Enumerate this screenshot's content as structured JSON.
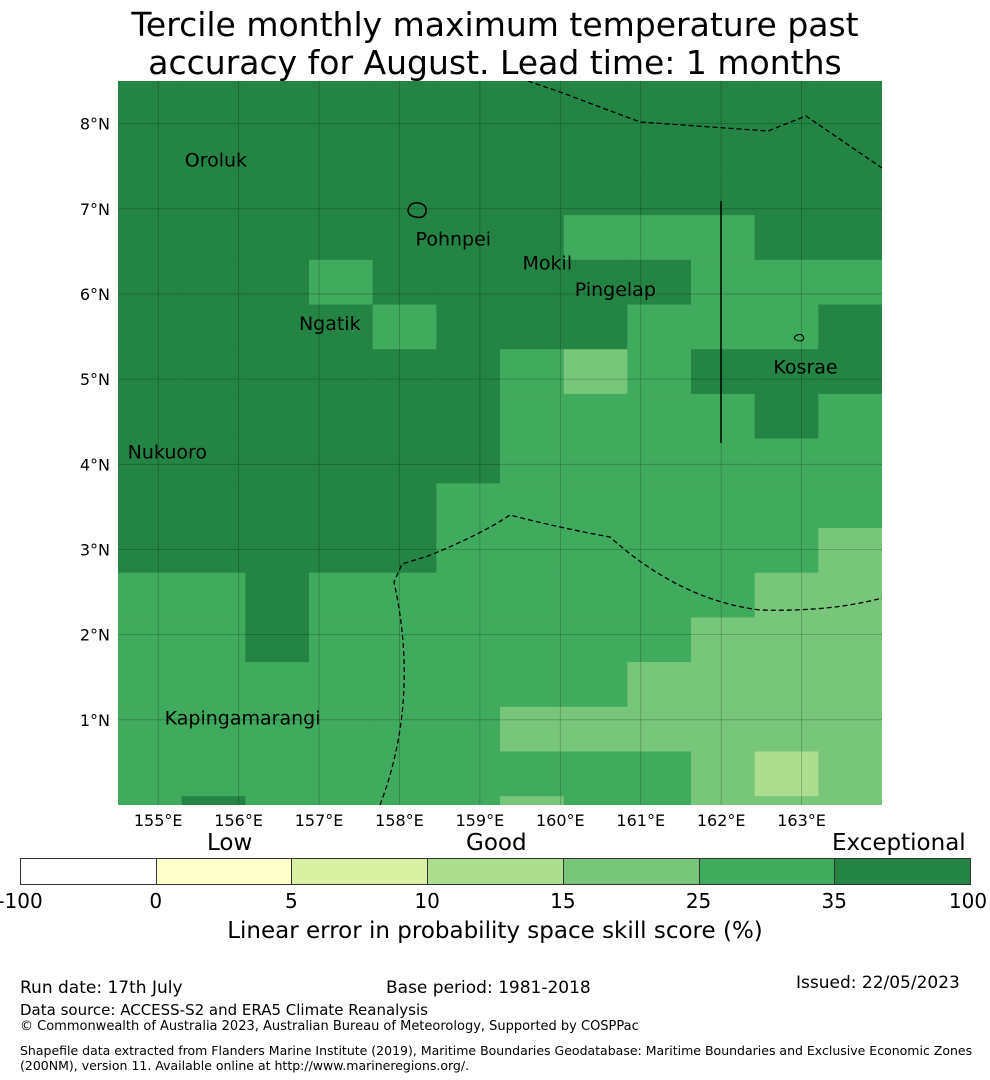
{
  "title_line1": "Tercile monthly maximum temperature past",
  "title_line2": "accuracy for August. Lead time: 1 months",
  "map": {
    "lon_range": [
      154.5,
      164.0
    ],
    "lat_range": [
      -0.0,
      8.5
    ],
    "x_ticks": [
      {
        "lon": 155,
        "label": "155°E"
      },
      {
        "lon": 156,
        "label": "156°E"
      },
      {
        "lon": 157,
        "label": "157°E"
      },
      {
        "lon": 158,
        "label": "158°E"
      },
      {
        "lon": 159,
        "label": "159°E"
      },
      {
        "lon": 160,
        "label": "160°E"
      },
      {
        "lon": 161,
        "label": "161°E"
      },
      {
        "lon": 162,
        "label": "162°E"
      },
      {
        "lon": 163,
        "label": "163°E"
      }
    ],
    "y_ticks": [
      {
        "lat": 1,
        "label": "1°N"
      },
      {
        "lat": 2,
        "label": "2°N"
      },
      {
        "lat": 3,
        "label": "3°N"
      },
      {
        "lat": 4,
        "label": "4°N"
      },
      {
        "lat": 5,
        "label": "5°N"
      },
      {
        "lat": 6,
        "label": "6°N"
      },
      {
        "lat": 7,
        "label": "7°N"
      },
      {
        "lat": 8,
        "label": "8°N"
      }
    ],
    "grid": true,
    "places": [
      {
        "name": "Oroluk",
        "lon": 155.33,
        "lat": 7.58
      },
      {
        "name": "Pohnpei",
        "lon": 158.2,
        "lat": 6.65
      },
      {
        "name": "Mokil",
        "lon": 159.53,
        "lat": 6.37
      },
      {
        "name": "Pingelap",
        "lon": 160.18,
        "lat": 6.06
      },
      {
        "name": "Ngatik",
        "lon": 156.75,
        "lat": 5.66
      },
      {
        "name": "Kosrae",
        "lon": 162.65,
        "lat": 5.15
      },
      {
        "name": "Nukuoro",
        "lon": 154.62,
        "lat": 4.15
      },
      {
        "name": "Kapingamarangi",
        "lon": 155.08,
        "lat": 1.03
      }
    ],
    "skill_grid_cols_lon_start": 154.5,
    "skill_grid_cell_deg": 0.8333,
    "skill_grid_rows_lat_top": 8.5,
    "skill_categories": [
      "35-100",
      "25-35",
      "15-25",
      "10-15"
    ],
    "skill_grid": [
      [
        0,
        0,
        0,
        0,
        0,
        0,
        0,
        0,
        0,
        0,
        0,
        0
      ],
      [
        0,
        0,
        0,
        0,
        0,
        0,
        0,
        0,
        0,
        0,
        0,
        0
      ],
      [
        0,
        0,
        0,
        0,
        0,
        0,
        0,
        0,
        0,
        0,
        0,
        0
      ],
      [
        0,
        0,
        0,
        0,
        0,
        0,
        0,
        1,
        1,
        1,
        0,
        0
      ],
      [
        0,
        0,
        0,
        1,
        0,
        0,
        0,
        0,
        0,
        1,
        1,
        1
      ],
      [
        0,
        0,
        0,
        0,
        1,
        0,
        0,
        0,
        1,
        1,
        1,
        0
      ],
      [
        0,
        0,
        0,
        0,
        0,
        0,
        1,
        2,
        1,
        0,
        0,
        0
      ],
      [
        0,
        0,
        0,
        0,
        0,
        0,
        1,
        1,
        1,
        1,
        0,
        1
      ],
      [
        0,
        0,
        0,
        0,
        0,
        0,
        1,
        1,
        1,
        1,
        1,
        1
      ],
      [
        0,
        0,
        0,
        0,
        0,
        1,
        1,
        1,
        1,
        1,
        1,
        1
      ],
      [
        0,
        0,
        0,
        0,
        0,
        1,
        1,
        1,
        1,
        1,
        1,
        2
      ],
      [
        1,
        1,
        0,
        1,
        1,
        1,
        1,
        1,
        1,
        1,
        2,
        2
      ],
      [
        1,
        1,
        0,
        1,
        1,
        1,
        1,
        1,
        1,
        2,
        2,
        2
      ],
      [
        1,
        1,
        1,
        1,
        1,
        1,
        1,
        1,
        2,
        2,
        2,
        2
      ],
      [
        1,
        1,
        1,
        1,
        1,
        1,
        2,
        2,
        2,
        2,
        2,
        2
      ],
      [
        1,
        1,
        1,
        1,
        1,
        1,
        1,
        1,
        1,
        2,
        3,
        2
      ],
      [
        1,
        0,
        1,
        1,
        1,
        1,
        2,
        1,
        1,
        2,
        2,
        2
      ]
    ],
    "skill_grid_partial_last_row": true
  },
  "legend": {
    "band_labels": [
      "Low",
      "Good",
      "Exceptional"
    ],
    "ticks": [
      "-100",
      "0",
      "5",
      "10",
      "15",
      "25",
      "35",
      "100"
    ],
    "colors": [
      "#ffffff",
      "#ffffcc",
      "#d9f0a3",
      "#addd8e",
      "#78c679",
      "#41ab5d",
      "#238443"
    ],
    "title": "Linear error in probability space skill score (%)"
  },
  "footer": {
    "run_date": "Run date: 17th July",
    "base_period": "Base period: 1981-2018",
    "issued": "Issued: 22/05/2023",
    "data_source": "Data source: ACCESS-S2 and ERA5 Climate Reanalysis",
    "copyright": "© Commonwealth of Australia 2023, Australian Bureau of Meteorology, Supported by COSPPac",
    "shapefile": "Shapefile data extracted from Flanders Marine Institute (2019), Maritime Boundaries Geodatabase: Maritime Boundaries and Exclusive Economic Zones (200NM), version 11. Available online at http://www.marineregions.org/."
  }
}
